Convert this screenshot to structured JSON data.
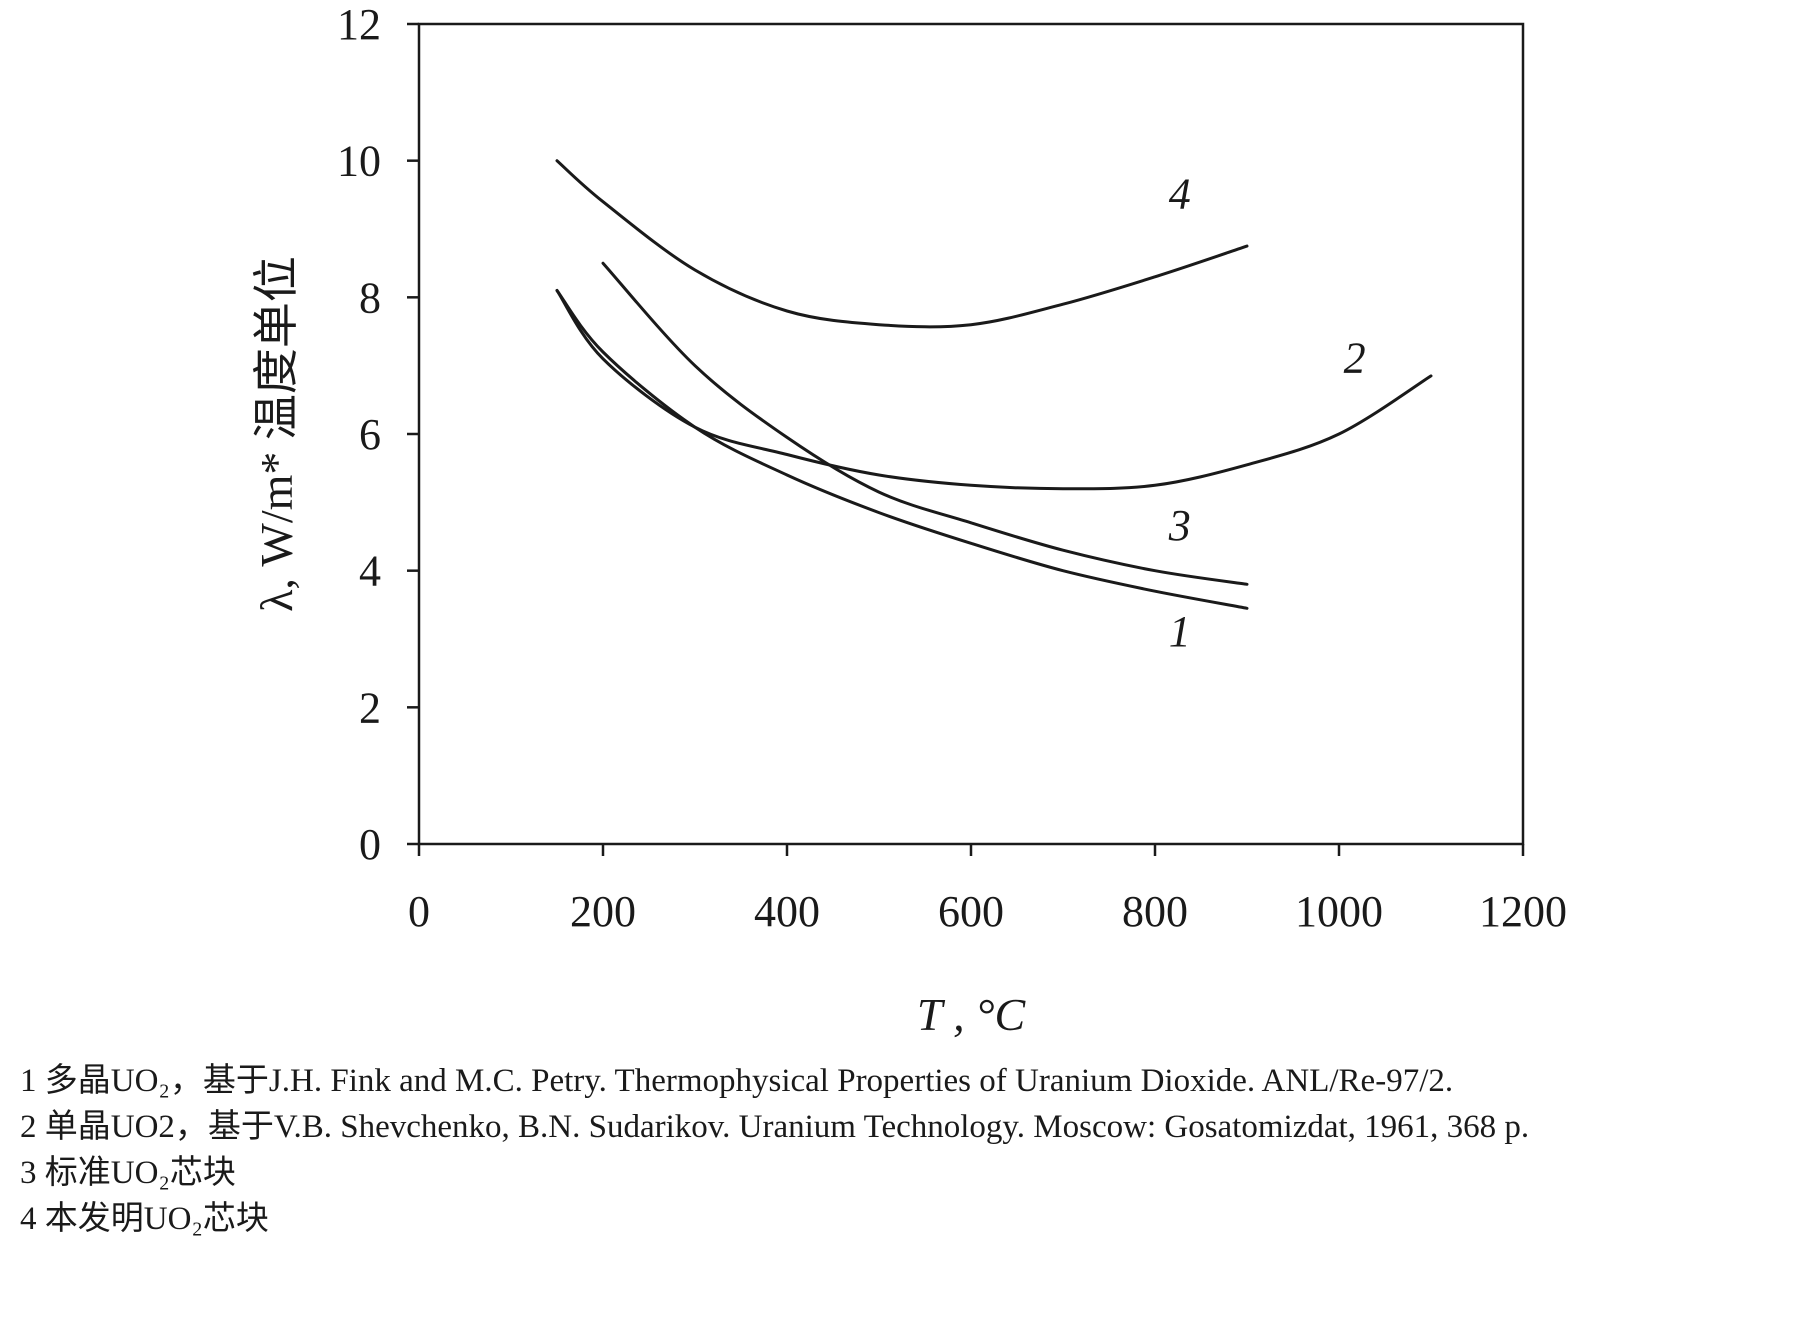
{
  "chart_data": {
    "type": "line",
    "title": "",
    "xlabel": "T , °C",
    "ylabel": "λ, W/m* 温度单位",
    "xlim": [
      0,
      1200
    ],
    "ylim": [
      0,
      12
    ],
    "x_ticks": [
      "0",
      "200",
      "400",
      "600",
      "800",
      "1000",
      "1200"
    ],
    "y_ticks": [
      "0",
      "2",
      "4",
      "6",
      "8",
      "10",
      "12"
    ],
    "grid": false,
    "series": [
      {
        "name": "1",
        "x": [
          150,
          200,
          300,
          400,
          500,
          600,
          700,
          800,
          900
        ],
        "y": [
          8.1,
          7.2,
          6.1,
          5.4,
          4.85,
          4.4,
          4.0,
          3.7,
          3.45
        ]
      },
      {
        "name": "2",
        "x": [
          150,
          200,
          300,
          400,
          500,
          600,
          700,
          800,
          900,
          1000,
          1100
        ],
        "y": [
          8.1,
          7.1,
          6.1,
          5.7,
          5.4,
          5.25,
          5.2,
          5.25,
          5.55,
          6.0,
          6.85
        ]
      },
      {
        "name": "3",
        "x": [
          200,
          300,
          400,
          500,
          600,
          700,
          800,
          900
        ],
        "y": [
          8.5,
          7.0,
          5.95,
          5.15,
          4.7,
          4.3,
          4.0,
          3.8
        ]
      },
      {
        "name": "4",
        "x": [
          150,
          200,
          300,
          400,
          500,
          600,
          700,
          800,
          900
        ],
        "y": [
          10.0,
          9.4,
          8.4,
          7.8,
          7.6,
          7.6,
          7.9,
          8.3,
          8.75
        ]
      }
    ],
    "curve_labels": [
      {
        "text": "1",
        "x": 815,
        "y": 2.9
      },
      {
        "text": "2",
        "x": 1005,
        "y": 6.9
      },
      {
        "text": "3",
        "x": 815,
        "y": 4.45
      },
      {
        "text": "4",
        "x": 815,
        "y": 9.3
      }
    ]
  },
  "legend": [
    "1 多晶UO₂，基于J.H. Fink and M.C. Petry. Thermophysical Properties of Uranium Dioxide. ANL/Re-97/2.",
    "2 单晶UO2，基于V.B. Shevchenko, B.N. Sudarikov. Uranium Technology. Moscow: Gosatomizdat, 1961, 368 p.",
    "3 标准UO₂芯块",
    "4 本发明UO₂芯块"
  ]
}
